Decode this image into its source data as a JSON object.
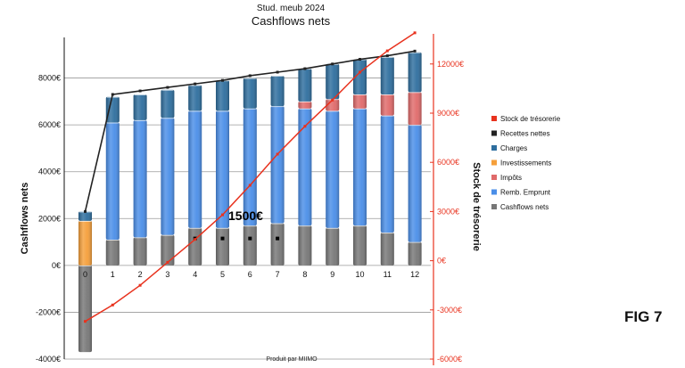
{
  "chart_data": {
    "type": "bar",
    "title": "Stud. meub 2024",
    "subtitle": "Cashflows nets",
    "ylabel": "Cashflows nets",
    "y2label": "Stock de trésorerie",
    "categories": [
      "0",
      "1",
      "2",
      "3",
      "4",
      "5",
      "6",
      "7",
      "8",
      "9",
      "10",
      "11",
      "12"
    ],
    "ylim": [
      -4000,
      10000
    ],
    "yticks": [
      -4000,
      -2000,
      0,
      2000,
      4000,
      6000,
      8000
    ],
    "ytick_labels": [
      "-4000€",
      "-2000€",
      "0€",
      "2000€",
      "4000€",
      "6000€",
      "8000€"
    ],
    "y2lim": [
      -6000,
      14000
    ],
    "y2ticks": [
      -6000,
      -3000,
      0,
      3000,
      6000,
      9000,
      12000
    ],
    "y2tick_labels": [
      "-6000€",
      "-3000€",
      "0€",
      "3000€",
      "6000€",
      "9000€",
      "12000€"
    ],
    "series": [
      {
        "name": "Cashflows nets",
        "color": "#777777",
        "values": [
          -3700,
          1100,
          1200,
          1300,
          1600,
          1600,
          1700,
          1800,
          1700,
          1600,
          1700,
          1400,
          1000
        ]
      },
      {
        "name": "Remb. Emprunt",
        "color": "#4a8ee8",
        "values": [
          0,
          5000,
          5000,
          5000,
          5000,
          5000,
          5000,
          5000,
          5000,
          5000,
          5000,
          5000,
          5000
        ]
      },
      {
        "name": "Impôts",
        "color": "#e06a6a",
        "values": [
          0,
          0,
          0,
          0,
          0,
          0,
          0,
          0,
          300,
          500,
          600,
          900,
          1400
        ]
      },
      {
        "name": "Investissements",
        "color": "#f59f3a",
        "values": [
          1900,
          0,
          0,
          0,
          0,
          0,
          0,
          0,
          0,
          0,
          0,
          0,
          0
        ]
      },
      {
        "name": "Charges",
        "color": "#2e6e9e",
        "values": [
          400,
          1100,
          1100,
          1200,
          1100,
          1300,
          1300,
          1300,
          1400,
          1500,
          1500,
          1600,
          1700
        ]
      }
    ],
    "recettes_nettes": {
      "name": "Recettes nettes",
      "color": "#222222",
      "values": [
        2300,
        7300,
        7450,
        7600,
        7750,
        7900,
        8100,
        8250,
        8400,
        8600,
        8800,
        8950,
        9150
      ]
    },
    "stock_tresorerie": {
      "name": "Stock de trésorerie",
      "color": "#e8321e",
      "values": [
        -3700,
        -2700,
        -1500,
        -100,
        1300,
        2800,
        4600,
        6500,
        8200,
        9800,
        11500,
        12800,
        13900
      ]
    },
    "markers": [
      {
        "x": "4",
        "y": 1150
      },
      {
        "x": "5",
        "y": 1150
      },
      {
        "x": "6",
        "y": 1150
      },
      {
        "x": "7",
        "y": 1150
      }
    ],
    "legend": [
      "Stock de trésorerie",
      "Recettes nettes",
      "Charges",
      "Investissements",
      "Impôts",
      "Remb. Emprunt",
      "Cashflows nets"
    ],
    "legend_colors": [
      "#e8321e",
      "#222222",
      "#2e6e9e",
      "#f59f3a",
      "#e06a6a",
      "#4a8ee8",
      "#777777"
    ],
    "legend_position": "right",
    "annotation": "1500€",
    "footer": "Produit par MIIMO",
    "figure_label": "FIG 7"
  }
}
